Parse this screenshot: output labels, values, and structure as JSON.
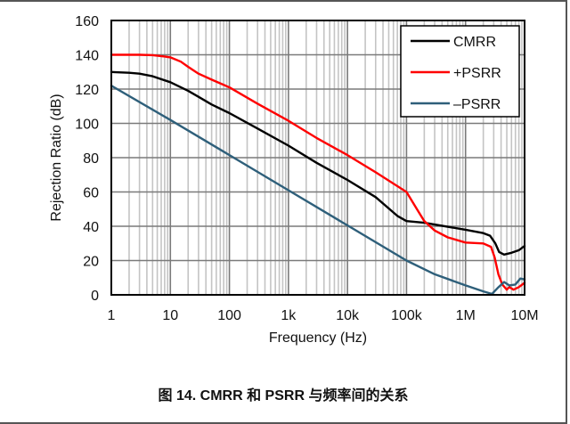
{
  "caption": "图 14. CMRR 和 PSRR 与频率间的关系",
  "chart_data": {
    "type": "line",
    "title": "",
    "xlabel": "Frequency (Hz)",
    "ylabel": "Rejection Ratio (dB)",
    "xscale": "log",
    "xlim": [
      1,
      10000000
    ],
    "ylim": [
      0,
      160
    ],
    "grid": true,
    "legend_position": "top-right",
    "x_ticks": [
      {
        "value": 1,
        "label": "1"
      },
      {
        "value": 10,
        "label": "10"
      },
      {
        "value": 100,
        "label": "100"
      },
      {
        "value": 1000,
        "label": "1k"
      },
      {
        "value": 10000,
        "label": "10k"
      },
      {
        "value": 100000,
        "label": "100k"
      },
      {
        "value": 1000000,
        "label": "1M"
      },
      {
        "value": 10000000,
        "label": "10M"
      }
    ],
    "y_ticks": [
      {
        "value": 0,
        "label": "0"
      },
      {
        "value": 20,
        "label": "20"
      },
      {
        "value": 40,
        "label": "40"
      },
      {
        "value": 60,
        "label": "60"
      },
      {
        "value": 80,
        "label": "80"
      },
      {
        "value": 100,
        "label": "100"
      },
      {
        "value": 120,
        "label": "120"
      },
      {
        "value": 140,
        "label": "140"
      },
      {
        "value": 160,
        "label": "160"
      }
    ],
    "series": [
      {
        "name": "CMRR",
        "color": "#000000",
        "points": [
          [
            1,
            130
          ],
          [
            2,
            129.5
          ],
          [
            3,
            129
          ],
          [
            5,
            127.5
          ],
          [
            10,
            124
          ],
          [
            20,
            119
          ],
          [
            30,
            115.5
          ],
          [
            50,
            111
          ],
          [
            100,
            106
          ],
          [
            300,
            97
          ],
          [
            1000,
            87
          ],
          [
            3000,
            77
          ],
          [
            10000,
            67
          ],
          [
            30000,
            57
          ],
          [
            70000,
            46
          ],
          [
            100000,
            43
          ],
          [
            200000,
            42
          ],
          [
            300000,
            41
          ],
          [
            1000000,
            38
          ],
          [
            2000000,
            36
          ],
          [
            2600000,
            34.5
          ],
          [
            3200000,
            30
          ],
          [
            3700000,
            25
          ],
          [
            4500000,
            23.5
          ],
          [
            6000000,
            24.5
          ],
          [
            8000000,
            26
          ],
          [
            10000000,
            28.5
          ]
        ]
      },
      {
        "name": "+PSRR",
        "color": "#ff0000",
        "points": [
          [
            1,
            140
          ],
          [
            3,
            140
          ],
          [
            5,
            139.8
          ],
          [
            8,
            139
          ],
          [
            10,
            138.5
          ],
          [
            15,
            136
          ],
          [
            20,
            133
          ],
          [
            30,
            129
          ],
          [
            50,
            125.5
          ],
          [
            100,
            121
          ],
          [
            300,
            111.5
          ],
          [
            1000,
            101.5
          ],
          [
            3000,
            91.5
          ],
          [
            10000,
            81.5
          ],
          [
            30000,
            71.5
          ],
          [
            100000,
            60
          ],
          [
            150000,
            50
          ],
          [
            200000,
            43
          ],
          [
            300000,
            37.5
          ],
          [
            500000,
            33.5
          ],
          [
            1000000,
            30.5
          ],
          [
            2000000,
            30
          ],
          [
            2700000,
            28
          ],
          [
            3100000,
            22
          ],
          [
            3600000,
            12
          ],
          [
            4200000,
            6
          ],
          [
            5000000,
            3
          ],
          [
            5500000,
            4.5
          ],
          [
            6500000,
            3
          ],
          [
            8000000,
            4.5
          ],
          [
            10000000,
            7
          ]
        ]
      },
      {
        "name": "–PSRR",
        "color": "#2e5f7a",
        "points": [
          [
            1,
            122
          ],
          [
            10,
            102
          ],
          [
            100,
            81.5
          ],
          [
            1000,
            61
          ],
          [
            10000,
            40.5
          ],
          [
            100000,
            20
          ],
          [
            300000,
            12
          ],
          [
            1000000,
            5.5
          ],
          [
            2000000,
            2
          ],
          [
            2800000,
            0.5
          ],
          [
            3500000,
            4
          ],
          [
            4500000,
            7.5
          ],
          [
            5500000,
            5.5
          ],
          [
            7000000,
            6
          ],
          [
            8500000,
            9.5
          ],
          [
            10000000,
            9
          ]
        ]
      }
    ]
  }
}
